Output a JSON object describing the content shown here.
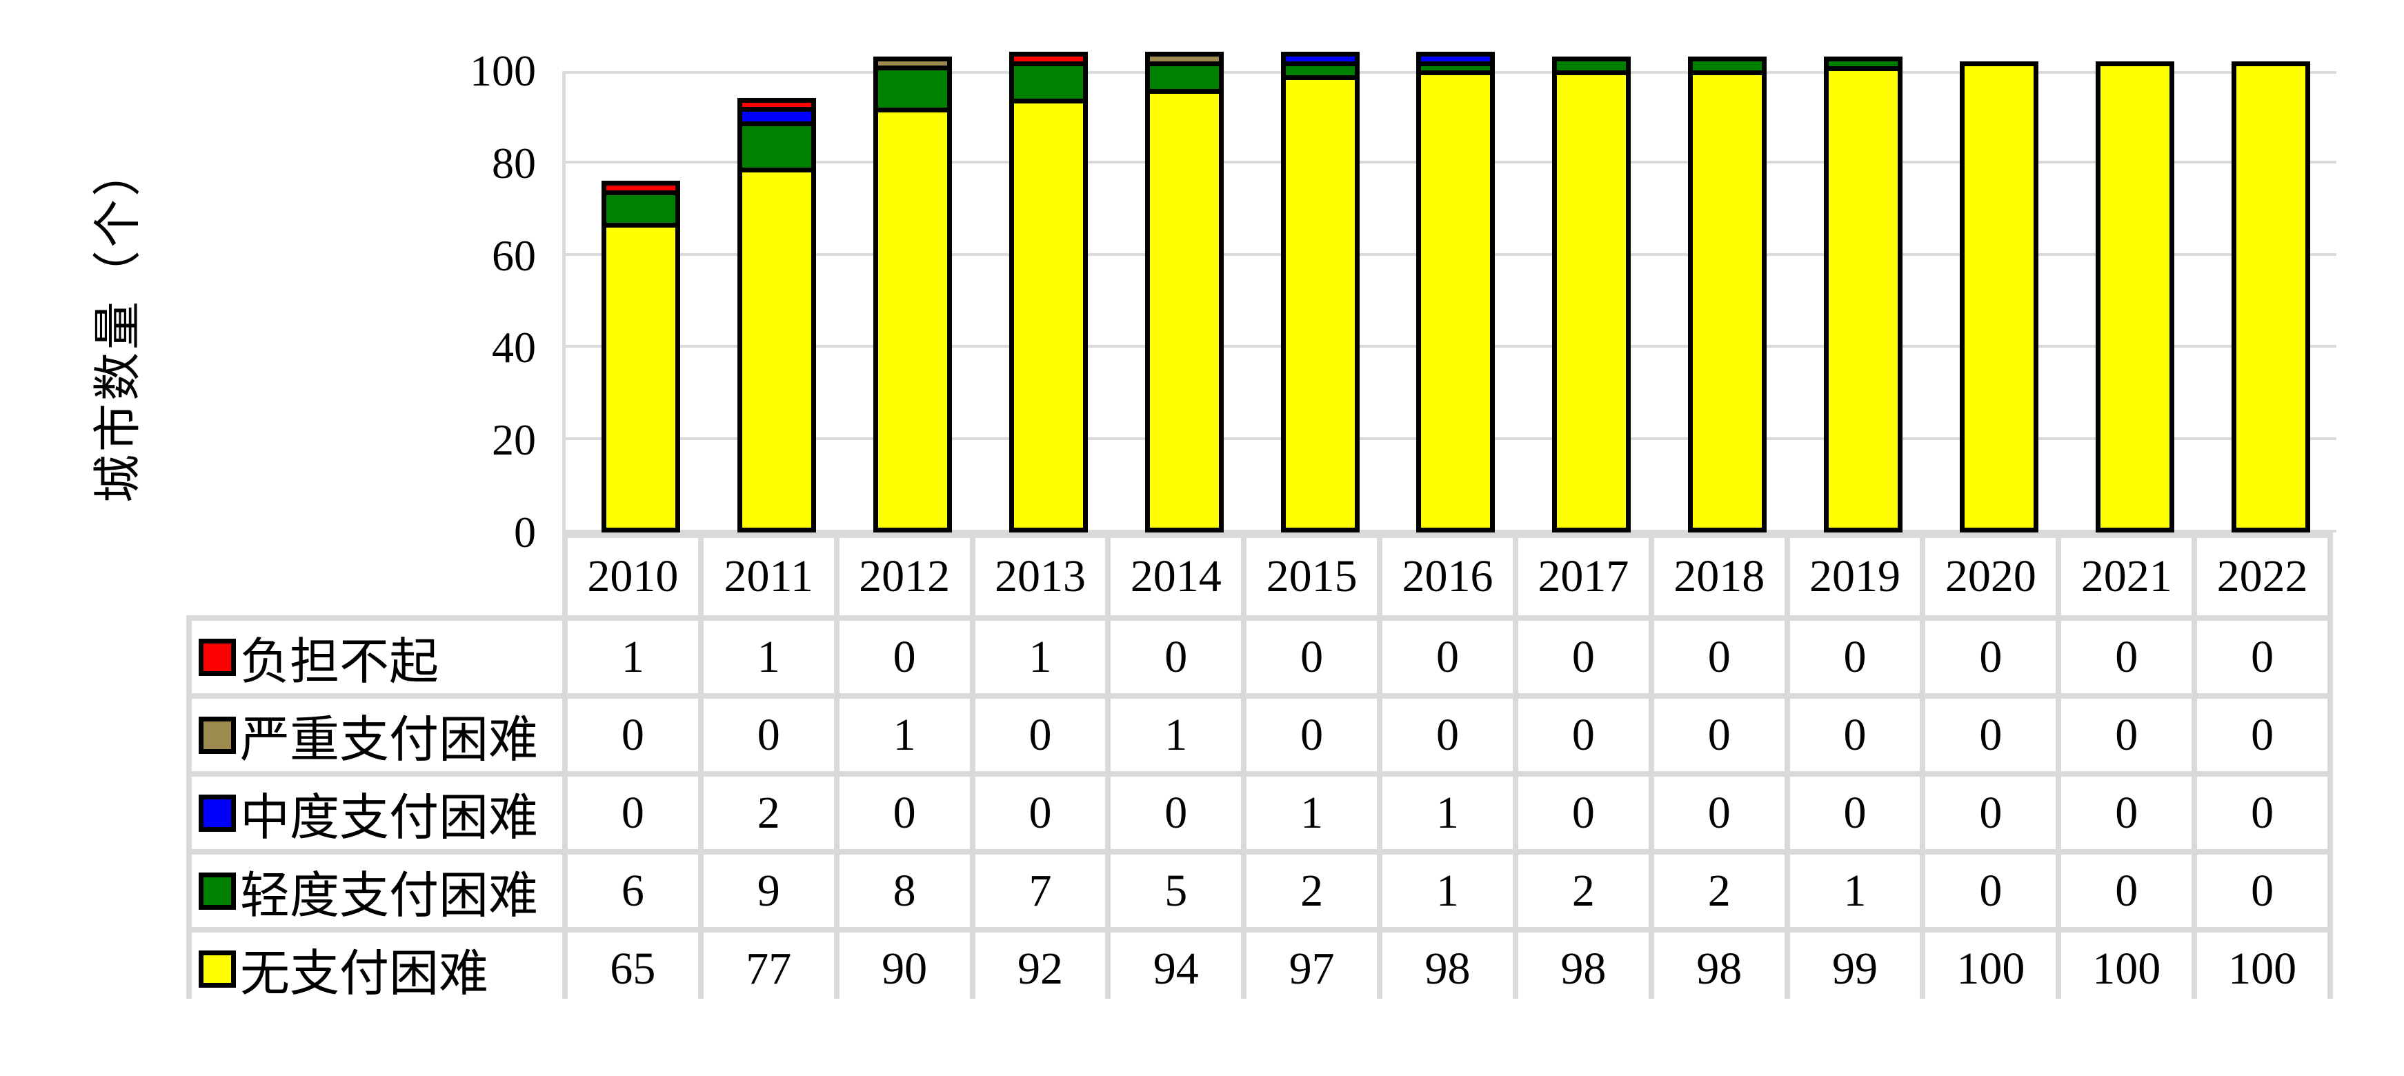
{
  "chart_data": {
    "type": "bar",
    "stacked": true,
    "title": "",
    "ylabel": "城市数量（个）",
    "xlabel": "",
    "ylim": [
      0,
      100
    ],
    "yticks": [
      0,
      20,
      40,
      60,
      80,
      100
    ],
    "grid": true,
    "gridline_color": "#dadada",
    "bar_border_color": "#000000",
    "legend_position": "table-below",
    "categories": [
      "2010",
      "2011",
      "2012",
      "2013",
      "2014",
      "2015",
      "2016",
      "2017",
      "2018",
      "2019",
      "2020",
      "2021",
      "2022"
    ],
    "series": [
      {
        "name": "负担不起",
        "color": "#ff0000",
        "values": [
          1,
          1,
          0,
          1,
          0,
          0,
          0,
          0,
          0,
          0,
          0,
          0,
          0
        ]
      },
      {
        "name": "严重支付困难",
        "color": "#9d8a4f",
        "values": [
          0,
          0,
          1,
          0,
          1,
          0,
          0,
          0,
          0,
          0,
          0,
          0,
          0
        ]
      },
      {
        "name": "中度支付困难",
        "color": "#0000ff",
        "values": [
          0,
          2,
          0,
          0,
          0,
          1,
          1,
          0,
          0,
          0,
          0,
          0,
          0
        ]
      },
      {
        "name": "轻度支付困难",
        "color": "#008000",
        "values": [
          6,
          9,
          8,
          7,
          5,
          2,
          1,
          2,
          2,
          1,
          0,
          0,
          0
        ]
      },
      {
        "name": "无支付困难",
        "color": "#ffff00",
        "values": [
          65,
          77,
          90,
          92,
          94,
          97,
          98,
          98,
          98,
          99,
          100,
          100,
          100
        ]
      }
    ]
  }
}
